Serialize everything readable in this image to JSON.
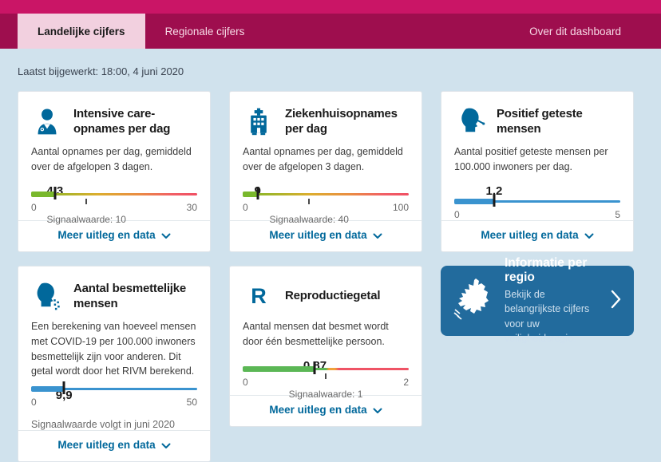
{
  "colors": {
    "top_strip_pink": "#ca1566",
    "header_crimson": "#9e0e4e",
    "active_tab_bg": "#f2d0df",
    "page_background": "#d0e2ed",
    "link_blue": "#01689b",
    "bar_blue": "#3a93cf",
    "bar_green": "#79b82c",
    "bar_orange": "#f0a23a",
    "bar_red": "#f04f63",
    "region_card_bg": "#226b9d"
  },
  "header": {
    "tabs": [
      {
        "label": "Landelijke cijfers",
        "active": true
      },
      {
        "label": "Regionale cijfers",
        "active": false
      }
    ],
    "right_link": "Over dit dashboard"
  },
  "updated": "Laatst bijgewerkt: 18:00, 4 juni 2020",
  "cards": [
    {
      "icon": "medical-worker-icon",
      "title": "Intensive care-opnames per dag",
      "description": "Aantal opnames per dag, gemiddeld over de afgelopen 3 dagen.",
      "value": 4.3,
      "value_label": "4,3",
      "min": 0,
      "max": 30,
      "min_label": "0",
      "max_label": "30",
      "value_pct": 14.3,
      "signal_value": 10,
      "signal_label": "Signaalwaarde: 10",
      "signal_pct": 33.3,
      "bar": "gradient-a",
      "fill": "green",
      "link_label": "Meer uitleg en data",
      "height_class": "h1"
    },
    {
      "icon": "hospital-icon",
      "title": "Ziekenhuisopnames per dag",
      "description": "Aantal opnames per dag, gemiddeld over de afgelopen 3 dagen.",
      "value": 9,
      "value_label": "9",
      "min": 0,
      "max": 100,
      "min_label": "0",
      "max_label": "100",
      "value_pct": 9,
      "signal_value": 40,
      "signal_label": "Signaalwaarde: 40",
      "signal_pct": 40,
      "bar": "gradient-a",
      "fill": "green",
      "link_label": "Meer uitleg en data",
      "height_class": "h1"
    },
    {
      "icon": "head-swab-icon",
      "title": "Positief geteste mensen",
      "description": "Aantal positief geteste mensen per 100.000 inwoners per dag.",
      "value": 1.2,
      "value_label": "1,2",
      "min": 0,
      "max": 5,
      "min_label": "0",
      "max_label": "5",
      "value_pct": 24,
      "bar": "blue",
      "fill": "blue",
      "link_label": "Meer uitleg en data",
      "height_class": "h1"
    },
    {
      "icon": "head-cough-icon",
      "title": "Aantal besmettelijke mensen",
      "description": "Een berekening van hoeveel mensen met COVID-19 per 100.000 inwoners besmettelijk zijn voor anderen. Dit getal wordt door het RIVM berekend.",
      "value": 9.9,
      "value_label": "9,9",
      "min": 0,
      "max": 50,
      "min_label": "0",
      "max_label": "50",
      "value_pct": 19.8,
      "note": "Signaalwaarde volgt in juni 2020",
      "bar": "blue",
      "fill": "blue",
      "link_label": "Meer uitleg en data",
      "height_class": "h4"
    },
    {
      "icon": "r-letter-icon",
      "title": "Reproductiegetal",
      "description": "Aantal mensen dat besmet wordt door één besmettelijke persoon.",
      "value": 0.87,
      "value_label": "0,87",
      "min": 0,
      "max": 2,
      "min_label": "0",
      "max_label": "2",
      "value_pct": 43.5,
      "signal_value": 1,
      "signal_label": "Signaalwaarde: 1",
      "signal_pct": 50,
      "bar": "gradient-b",
      "fill": "pure-green",
      "link_label": "Meer uitleg en data",
      "height_class": "h5"
    }
  ],
  "region": {
    "title": "Informatie per regio",
    "subtitle": "Bekijk de belangrijkste cijfers voor uw veiligheidsregio."
  }
}
